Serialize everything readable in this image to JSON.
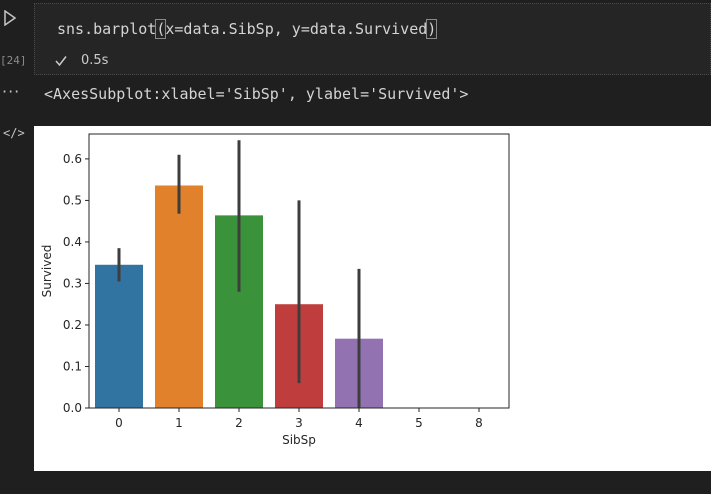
{
  "gutter": {
    "run_icon": "run-triangle-icon",
    "execution_count": "[24]",
    "more_icon": "ellipsis-icon",
    "output_icon": "code-icon",
    "output_icon_glyph": "</>"
  },
  "code_cell": {
    "code_before": "sns.barplot",
    "paren_open": "(",
    "code_middle": "x=data.SibSp, y=data.Survived",
    "paren_close": ")",
    "status_icon": "checkmark-icon",
    "duration": "0.5s"
  },
  "output": {
    "text": "<AxesSubplot:xlabel='SibSp', ylabel='Survived'>"
  },
  "chart_data": {
    "type": "bar",
    "categories": [
      "0",
      "1",
      "2",
      "3",
      "4",
      "5",
      "8"
    ],
    "values": [
      0.345,
      0.536,
      0.464,
      0.25,
      0.167,
      0.0,
      0.0
    ],
    "error_low": [
      0.305,
      0.468,
      0.28,
      0.06,
      0.0,
      0.0,
      0.0
    ],
    "error_high": [
      0.385,
      0.61,
      0.645,
      0.5,
      0.335,
      0.0,
      0.0
    ],
    "colors": [
      "#3274a1",
      "#e1812c",
      "#3a923a",
      "#c03d3e",
      "#9372b2",
      "#845b53",
      "#d684bd"
    ],
    "xlabel": "SibSp",
    "ylabel": "Survived",
    "ylim": [
      0,
      0.66
    ],
    "yticks": [
      "0.0",
      "0.1",
      "0.2",
      "0.3",
      "0.4",
      "0.5",
      "0.6"
    ],
    "grid": false
  }
}
